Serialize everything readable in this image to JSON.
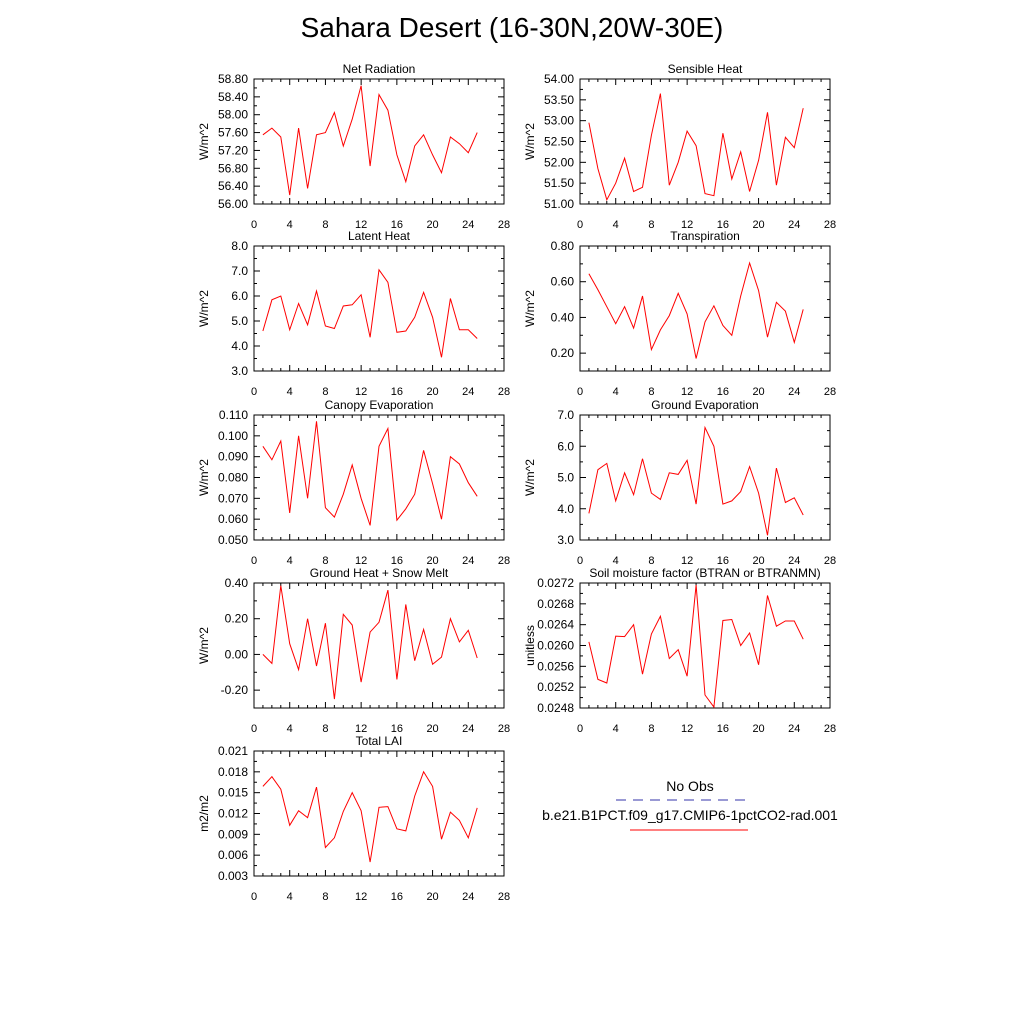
{
  "page_title": "Sahara Desert (16-30N,20W-30E)",
  "colors": {
    "series": "#ff0000",
    "obs": "#3333aa",
    "axis": "#000000"
  },
  "legend": {
    "obs_label": "No Obs",
    "model_label": "b.e21.B1PCT.f09_g17.CMIP6-1pctCO2-rad.001"
  },
  "chart_data": [
    {
      "type": "line",
      "title": "Net Radiation",
      "ylabel": "W/m^2",
      "xlim": [
        0,
        28
      ],
      "xticks": [
        0,
        4,
        8,
        12,
        16,
        20,
        24,
        28
      ],
      "ylim": [
        56.0,
        58.8
      ],
      "yticks": [
        "56.00",
        "56.40",
        "56.80",
        "57.20",
        "57.60",
        "58.00",
        "58.40",
        "58.80"
      ],
      "x": [
        1,
        2,
        3,
        4,
        5,
        6,
        7,
        8,
        9,
        10,
        11,
        12,
        13,
        14,
        15,
        16,
        17,
        18,
        19,
        20,
        21,
        22,
        23,
        24,
        25
      ],
      "values": [
        57.55,
        57.7,
        57.5,
        56.2,
        57.7,
        56.35,
        57.55,
        57.6,
        58.05,
        57.3,
        57.9,
        58.65,
        56.85,
        58.45,
        58.1,
        57.1,
        56.5,
        57.3,
        57.55,
        57.1,
        56.7,
        57.5,
        57.35,
        57.15,
        57.6
      ]
    },
    {
      "type": "line",
      "title": "Sensible Heat",
      "ylabel": "W/m^2",
      "xlim": [
        0,
        28
      ],
      "xticks": [
        0,
        4,
        8,
        12,
        16,
        20,
        24,
        28
      ],
      "ylim": [
        51.0,
        54.0
      ],
      "yticks": [
        "51.00",
        "51.50",
        "52.00",
        "52.50",
        "53.00",
        "53.50",
        "54.00"
      ],
      "x": [
        1,
        2,
        3,
        4,
        5,
        6,
        7,
        8,
        9,
        10,
        11,
        12,
        13,
        14,
        15,
        16,
        17,
        18,
        19,
        20,
        21,
        22,
        23,
        24,
        25
      ],
      "values": [
        52.95,
        51.85,
        51.1,
        51.5,
        52.1,
        51.3,
        51.4,
        52.65,
        53.65,
        51.45,
        52.0,
        52.75,
        52.4,
        51.25,
        51.2,
        52.7,
        51.6,
        52.25,
        51.3,
        52.05,
        53.2,
        51.45,
        52.6,
        52.35,
        53.3
      ]
    },
    {
      "type": "line",
      "title": "Latent Heat",
      "ylabel": "W/m^2",
      "xlim": [
        0,
        28
      ],
      "xticks": [
        0,
        4,
        8,
        12,
        16,
        20,
        24,
        28
      ],
      "ylim": [
        3.0,
        8.0
      ],
      "yticks": [
        "3.0",
        "4.0",
        "5.0",
        "6.0",
        "7.0",
        "8.0"
      ],
      "x": [
        1,
        2,
        3,
        4,
        5,
        6,
        7,
        8,
        9,
        10,
        11,
        12,
        13,
        14,
        15,
        16,
        17,
        18,
        19,
        20,
        21,
        22,
        23,
        24,
        25
      ],
      "values": [
        4.6,
        5.85,
        6.0,
        4.65,
        5.7,
        4.85,
        6.2,
        4.8,
        4.7,
        5.6,
        5.65,
        6.05,
        4.35,
        7.05,
        6.55,
        4.55,
        4.6,
        5.15,
        6.15,
        5.15,
        3.55,
        5.9,
        4.65,
        4.65,
        4.3
      ]
    },
    {
      "type": "line",
      "title": "Transpiration",
      "ylabel": "W/m^2",
      "xlim": [
        0,
        28
      ],
      "xticks": [
        0,
        4,
        8,
        12,
        16,
        20,
        24,
        28
      ],
      "ylim": [
        0.1,
        0.8
      ],
      "yticks": [
        "0.20",
        "0.40",
        "0.60",
        "0.80"
      ],
      "x": [
        1,
        2,
        3,
        4,
        5,
        6,
        7,
        8,
        9,
        10,
        11,
        12,
        13,
        14,
        15,
        16,
        17,
        18,
        19,
        20,
        21,
        22,
        23,
        24,
        25
      ],
      "values": [
        0.645,
        0.555,
        0.46,
        0.365,
        0.46,
        0.34,
        0.52,
        0.22,
        0.33,
        0.41,
        0.535,
        0.42,
        0.17,
        0.375,
        0.465,
        0.355,
        0.3,
        0.52,
        0.705,
        0.55,
        0.29,
        0.485,
        0.435,
        0.26,
        0.445
      ]
    },
    {
      "type": "line",
      "title": "Canopy Evaporation",
      "ylabel": "W/m^2",
      "xlim": [
        0,
        28
      ],
      "xticks": [
        0,
        4,
        8,
        12,
        16,
        20,
        24,
        28
      ],
      "ylim": [
        0.05,
        0.11
      ],
      "yticks": [
        "0.050",
        "0.060",
        "0.070",
        "0.080",
        "0.090",
        "0.100",
        "0.110"
      ],
      "x": [
        1,
        2,
        3,
        4,
        5,
        6,
        7,
        8,
        9,
        10,
        11,
        12,
        13,
        14,
        15,
        16,
        17,
        18,
        19,
        20,
        21,
        22,
        23,
        24,
        25
      ],
      "values": [
        0.095,
        0.0885,
        0.0975,
        0.063,
        0.1,
        0.07,
        0.107,
        0.0655,
        0.061,
        0.072,
        0.086,
        0.07,
        0.057,
        0.095,
        0.1035,
        0.0595,
        0.065,
        0.072,
        0.093,
        0.077,
        0.06,
        0.09,
        0.0865,
        0.0775,
        0.071
      ]
    },
    {
      "type": "line",
      "title": "Ground Evaporation",
      "ylabel": "W/m^2",
      "xlim": [
        0,
        28
      ],
      "xticks": [
        0,
        4,
        8,
        12,
        16,
        20,
        24,
        28
      ],
      "ylim": [
        3.0,
        7.0
      ],
      "yticks": [
        "3.0",
        "4.0",
        "5.0",
        "6.0",
        "7.0"
      ],
      "x": [
        1,
        2,
        3,
        4,
        5,
        6,
        7,
        8,
        9,
        10,
        11,
        12,
        13,
        14,
        15,
        16,
        17,
        18,
        19,
        20,
        21,
        22,
        23,
        24,
        25
      ],
      "values": [
        3.85,
        5.25,
        5.45,
        4.25,
        5.15,
        4.45,
        5.6,
        4.5,
        4.3,
        5.15,
        5.1,
        5.55,
        4.15,
        6.6,
        6.0,
        4.15,
        4.25,
        4.55,
        5.35,
        4.5,
        3.15,
        5.3,
        4.2,
        4.35,
        3.8
      ]
    },
    {
      "type": "line",
      "title": "Ground Heat + Snow Melt",
      "ylabel": "W/m^2",
      "xlim": [
        0,
        28
      ],
      "xticks": [
        0,
        4,
        8,
        12,
        16,
        20,
        24,
        28
      ],
      "ylim": [
        -0.3,
        0.4
      ],
      "yticks": [
        "-0.20",
        "0.00",
        "0.20",
        "0.40"
      ],
      "x": [
        1,
        2,
        3,
        4,
        5,
        6,
        7,
        8,
        9,
        10,
        11,
        12,
        13,
        14,
        15,
        16,
        17,
        18,
        19,
        20,
        21,
        22,
        23,
        24,
        25
      ],
      "values": [
        0.0,
        -0.05,
        0.385,
        0.06,
        -0.085,
        0.2,
        -0.065,
        0.175,
        -0.25,
        0.225,
        0.165,
        -0.155,
        0.125,
        0.18,
        0.36,
        -0.14,
        0.28,
        -0.035,
        0.14,
        -0.055,
        -0.015,
        0.2,
        0.07,
        0.135,
        -0.02
      ]
    },
    {
      "type": "line",
      "title": "Soil moisture factor (BTRAN or BTRANMN)",
      "ylabel": "unitless",
      "xlim": [
        0,
        28
      ],
      "xticks": [
        0,
        4,
        8,
        12,
        16,
        20,
        24,
        28
      ],
      "ylim": [
        0.0248,
        0.0272
      ],
      "yticks": [
        "0.0248",
        "0.0252",
        "0.0256",
        "0.0260",
        "0.0264",
        "0.0268",
        "0.0272"
      ],
      "x": [
        1,
        2,
        3,
        4,
        5,
        6,
        7,
        8,
        9,
        10,
        11,
        12,
        13,
        14,
        15,
        16,
        17,
        18,
        19,
        20,
        21,
        22,
        23,
        24,
        25
      ],
      "values": [
        0.02607,
        0.02535,
        0.02528,
        0.02618,
        0.02617,
        0.0264,
        0.02545,
        0.02622,
        0.02656,
        0.02575,
        0.02592,
        0.02541,
        0.02716,
        0.02505,
        0.02482,
        0.02648,
        0.0265,
        0.026,
        0.02624,
        0.02563,
        0.02696,
        0.02637,
        0.02647,
        0.02647,
        0.02612
      ]
    },
    {
      "type": "line",
      "title": "Total LAI",
      "ylabel": "m2/m2",
      "xlim": [
        0,
        28
      ],
      "xticks": [
        0,
        4,
        8,
        12,
        16,
        20,
        24,
        28
      ],
      "ylim": [
        0.003,
        0.021
      ],
      "yticks": [
        "0.003",
        "0.006",
        "0.009",
        "0.012",
        "0.015",
        "0.018",
        "0.021"
      ],
      "x": [
        1,
        2,
        3,
        4,
        5,
        6,
        7,
        8,
        9,
        10,
        11,
        12,
        13,
        14,
        15,
        16,
        17,
        18,
        19,
        20,
        21,
        22,
        23,
        24,
        25
      ],
      "values": [
        0.0159,
        0.0173,
        0.0155,
        0.0103,
        0.0124,
        0.0114,
        0.0158,
        0.0071,
        0.0085,
        0.0123,
        0.015,
        0.0124,
        0.005,
        0.0129,
        0.013,
        0.0098,
        0.0095,
        0.0145,
        0.018,
        0.0159,
        0.0083,
        0.0122,
        0.011,
        0.0085,
        0.0128
      ]
    }
  ]
}
